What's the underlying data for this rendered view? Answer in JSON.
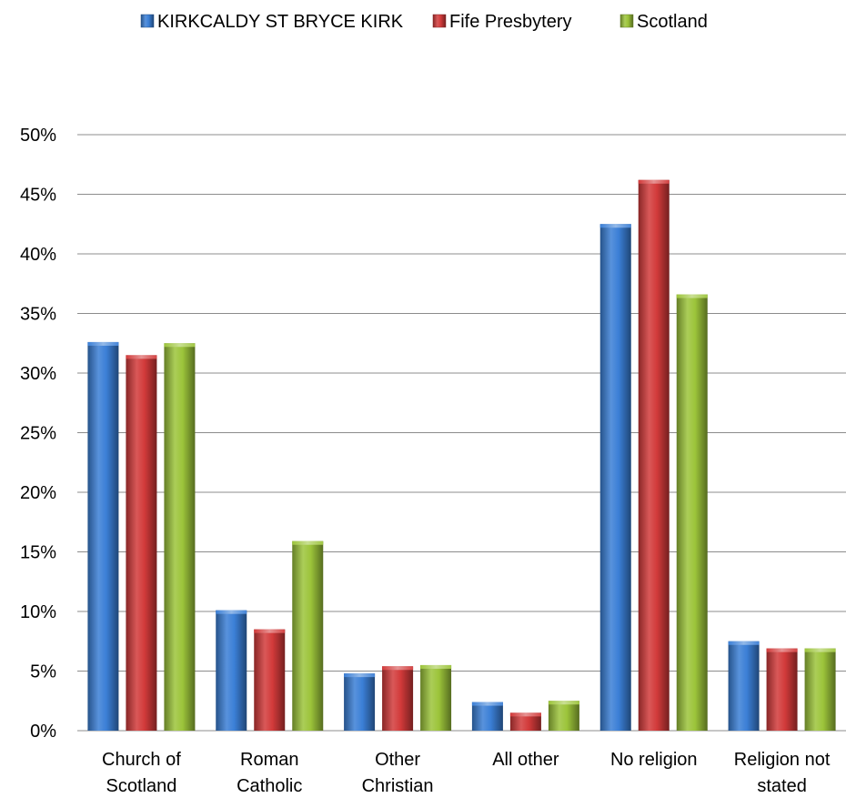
{
  "chart_data": {
    "type": "bar",
    "title": "",
    "xlabel": "",
    "ylabel": "",
    "categories": [
      [
        "Church of",
        "Scotland"
      ],
      [
        "Roman",
        "Catholic"
      ],
      [
        "Other",
        "Christian"
      ],
      [
        "All other"
      ],
      [
        "No religion"
      ],
      [
        "Religion not",
        "stated"
      ]
    ],
    "series": [
      {
        "name": "KIRKCALDY ST BRYCE KIRK",
        "color": "#3b7fd6",
        "values": [
          32.6,
          10.1,
          4.8,
          2.4,
          42.5,
          7.5
        ]
      },
      {
        "name": "Fife Presbytery",
        "color": "#d23a3a",
        "values": [
          31.5,
          8.5,
          5.4,
          1.5,
          46.2,
          6.9
        ]
      },
      {
        "name": "Scotland",
        "color": "#9cc43a",
        "values": [
          32.5,
          15.9,
          5.5,
          2.5,
          36.6,
          6.9
        ]
      }
    ],
    "ylim": [
      0,
      50
    ],
    "yticks": [
      "0%",
      "5%",
      "10%",
      "15%",
      "20%",
      "25%",
      "30%",
      "35%",
      "40%",
      "45%",
      "50%"
    ],
    "grid": true,
    "legend_position": "top-center"
  }
}
